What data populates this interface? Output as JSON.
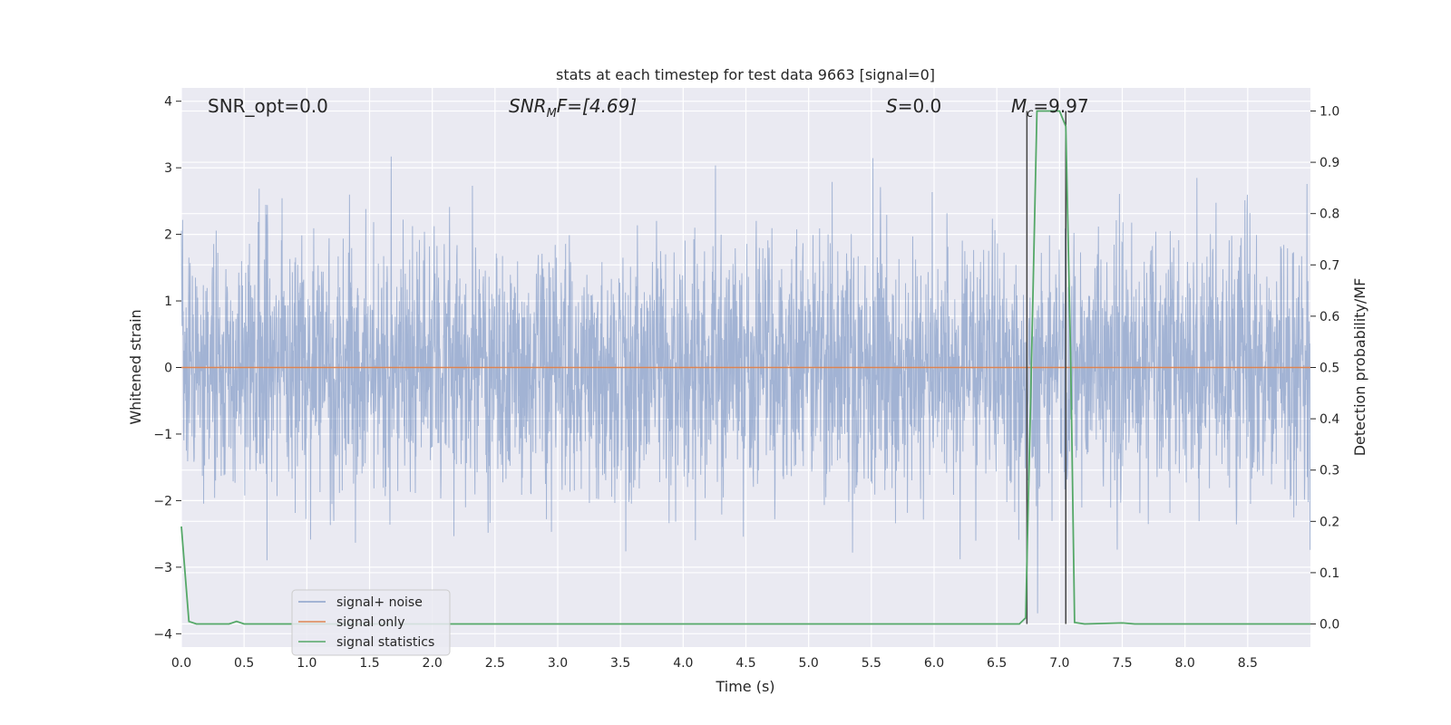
{
  "chart_data": {
    "type": "line",
    "title": "stats at each timestep for test data 9663 [signal=0]",
    "xlabel": "Time (s)",
    "ylabel": "Whitened strain",
    "y2label": "Detection probability/MF",
    "xlim": [
      0.0,
      9.0
    ],
    "ylim": [
      -4.2,
      4.2
    ],
    "y2lim": [
      -0.045,
      1.045
    ],
    "xticks": [
      "0.0",
      "0.5",
      "1.0",
      "1.5",
      "2.0",
      "2.5",
      "3.0",
      "3.5",
      "4.0",
      "4.5",
      "5.0",
      "5.5",
      "6.0",
      "6.5",
      "7.0",
      "7.5",
      "8.0",
      "8.5"
    ],
    "yticks": [
      "4",
      "3",
      "2",
      "1",
      "0",
      "−1",
      "−2",
      "−3",
      "−4"
    ],
    "y2ticks": [
      "1.0",
      "0.9",
      "0.8",
      "0.7",
      "0.6",
      "0.5",
      "0.4",
      "0.3",
      "0.2",
      "0.1",
      "0.0"
    ],
    "grid": true,
    "legend_position": "lower-left",
    "colors": {
      "plot_bg": "#eaeaf2",
      "noise": "#4c72b0",
      "signal": "#dd8452",
      "stats": "#55a868",
      "marker": "#444444"
    },
    "annotations": {
      "snr_opt": "SNR_opt=0.0",
      "snr_mf_main": "SNR",
      "snr_mf_sub": "M",
      "snr_mf_rest": "F=[4.69]",
      "s_main": "S",
      "s_rest": "=0.0",
      "mc_main": "M",
      "mc_sub": "c",
      "mc_rest": "=9.97"
    },
    "markers": [
      6.74,
      7.05
    ],
    "series": [
      {
        "name": "signal+ noise",
        "axis": "left",
        "description_values": "random noise strain, amplitude roughly within [-4, 4]",
        "x_range": [
          0.0,
          9.0
        ],
        "sample_spacing": 0.0025
      },
      {
        "name": "signal only",
        "axis": "left",
        "x": [
          0.0,
          9.0
        ],
        "y": [
          0.0,
          0.0
        ]
      },
      {
        "name": "signal statistics",
        "axis": "right",
        "x": [
          0.0,
          0.06,
          0.12,
          0.2,
          0.3,
          0.38,
          0.44,
          0.5,
          0.6,
          1.0,
          2.0,
          3.0,
          4.0,
          5.0,
          6.0,
          6.5,
          6.68,
          6.73,
          6.78,
          6.82,
          7.0,
          7.05,
          7.09,
          7.12,
          7.2,
          7.5,
          7.6,
          8.0,
          8.5,
          9.0
        ],
        "y": [
          0.19,
          0.005,
          0.0,
          0.0,
          0.0,
          0.0,
          0.005,
          0.0,
          0.0,
          0.0,
          0.0,
          0.0,
          0.0,
          0.0,
          0.0,
          0.0,
          0.0,
          0.012,
          0.55,
          1.0,
          1.0,
          0.97,
          0.5,
          0.003,
          0.0,
          0.002,
          0.0,
          0.0,
          0.0,
          0.0
        ]
      }
    ]
  }
}
